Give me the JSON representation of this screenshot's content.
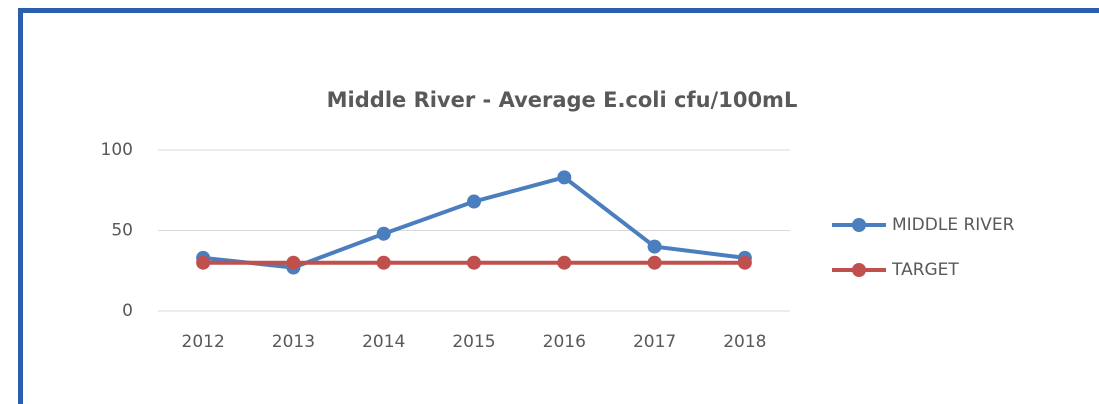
{
  "chart_data": {
    "type": "line",
    "title": "Middle River - Average E.coli cfu/100mL",
    "categories": [
      "2012",
      "2013",
      "2014",
      "2015",
      "2016",
      "2017",
      "2018"
    ],
    "series": [
      {
        "name": "MIDDLE RIVER",
        "color": "#4a7ebf",
        "values": [
          33,
          27,
          48,
          68,
          83,
          40,
          33
        ]
      },
      {
        "name": "TARGET",
        "color": "#c0504d",
        "values": [
          30,
          30,
          30,
          30,
          30,
          30,
          30
        ]
      }
    ],
    "ylim": [
      0,
      100
    ],
    "yticks": [
      0,
      50,
      100
    ],
    "grid": true,
    "legend": "right"
  }
}
